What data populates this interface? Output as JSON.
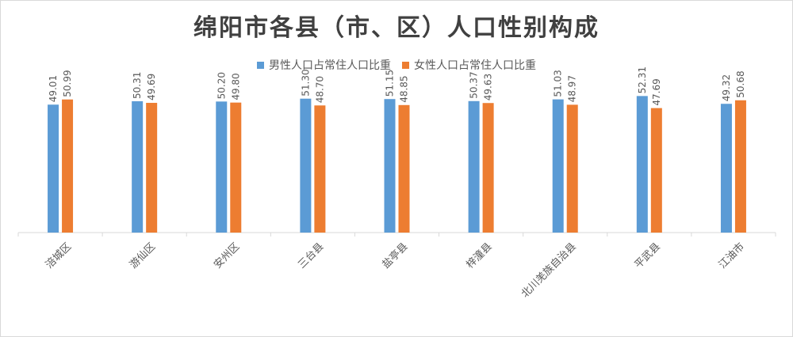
{
  "chart_data": {
    "type": "bar",
    "title": "绵阳市各县（市、区）人口性别构成",
    "categories": [
      "涪城区",
      "游仙区",
      "安州区",
      "三台县",
      "盐亭县",
      "梓潼县",
      "北川羌族自治县",
      "平武县",
      "江油市"
    ],
    "series": [
      {
        "name": "男性人口占常住人口比重",
        "color": "#5b9bd5",
        "values": [
          49.01,
          50.31,
          50.2,
          51.3,
          51.15,
          50.37,
          51.03,
          52.31,
          49.32
        ],
        "labels": [
          "49.01",
          "50.31",
          "50.20",
          "51.30",
          "51.15",
          "50.37",
          "51.03",
          "52.31",
          "49.32"
        ]
      },
      {
        "name": "女性人口占常住人口比重",
        "color": "#ed7d31",
        "values": [
          50.99,
          49.69,
          49.8,
          48.7,
          48.85,
          49.63,
          48.97,
          47.69,
          50.68
        ],
        "labels": [
          "50.99",
          "49.69",
          "49.80",
          "48.70",
          "48.85",
          "49.63",
          "48.97",
          "47.69",
          "50.68"
        ]
      }
    ],
    "legend_position": "top",
    "ylim": [
      0,
      60
    ],
    "grid": false
  }
}
